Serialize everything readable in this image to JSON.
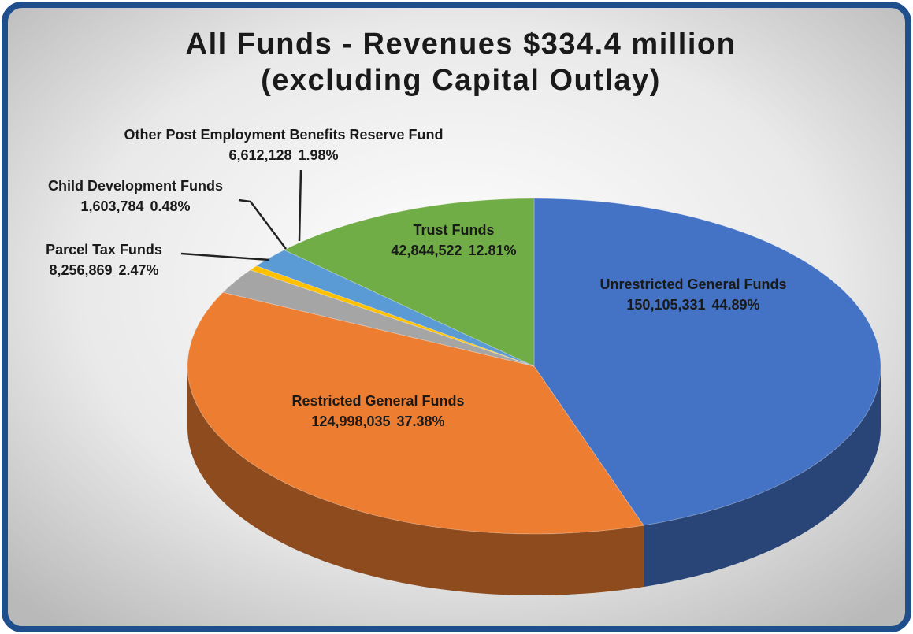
{
  "chart_data": {
    "type": "pie3d",
    "title": "All Funds - Revenues $334.4 million",
    "subtitle": "(excluding Capital Outlay)",
    "categories": [
      "Unrestricted General Funds",
      "Restricted General Funds",
      "Parcel Tax Funds",
      "Child Development Funds",
      "Other Post Employment Benefits Reserve Fund",
      "Trust Funds"
    ],
    "values": [
      150105331,
      124998035,
      8256869,
      1603784,
      6612128,
      42844522
    ],
    "value_labels": [
      "150,105,331",
      "124,998,035",
      "8,256,869",
      "1,603,784",
      "6,612,128",
      "42,844,522"
    ],
    "percentages": [
      44.89,
      37.38,
      2.47,
      0.48,
      1.98,
      12.81
    ],
    "percentage_labels": [
      "44.89%",
      "37.38%",
      "2.47%",
      "0.48%",
      "1.98%",
      "12.81%"
    ],
    "colors": [
      "#4472c4",
      "#ed7d31",
      "#a5a5a5",
      "#ffc000",
      "#5b9bd5",
      "#70ad47"
    ]
  }
}
